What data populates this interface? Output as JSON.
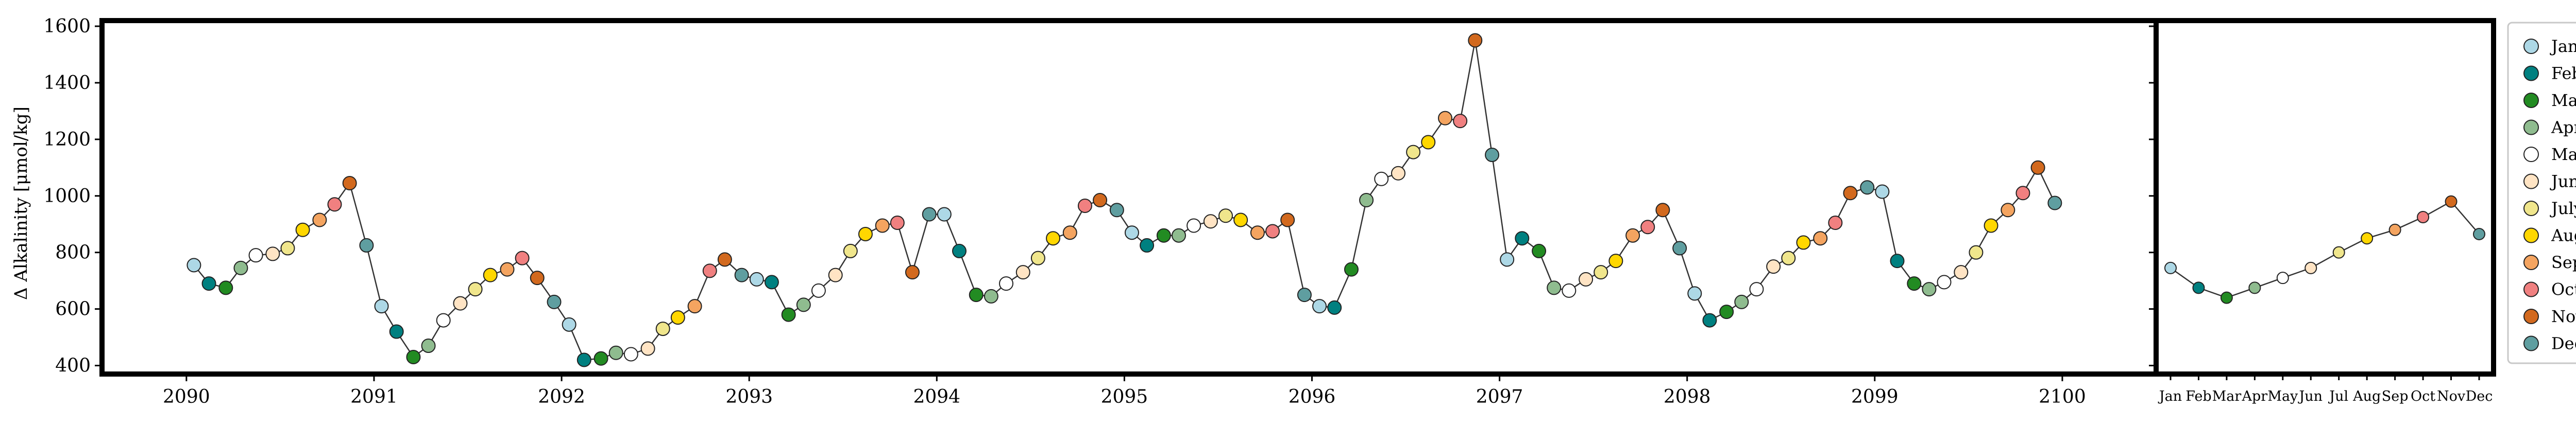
{
  "chart_data": [
    {
      "type": "line",
      "ylabel": "Δ Alkalinity [μmol/kg]",
      "xlabel": "",
      "title": "",
      "xlim": [
        2089.55,
        2100.5
      ],
      "ylim": [
        370,
        1620
      ],
      "y_ticks": [
        400,
        600,
        800,
        1000,
        1200,
        1400,
        1600
      ],
      "x_ticks": [
        "2090",
        "2091",
        "2092",
        "2093",
        "2094",
        "2095",
        "2096",
        "2097",
        "2098",
        "2099",
        "2100"
      ],
      "grid": false,
      "x": [
        2090.04,
        2090.12,
        2090.21,
        2090.29,
        2090.37,
        2090.46,
        2090.54,
        2090.62,
        2090.71,
        2090.79,
        2090.87,
        2090.96,
        2091.04,
        2091.12,
        2091.21,
        2091.29,
        2091.37,
        2091.46,
        2091.54,
        2091.62,
        2091.71,
        2091.79,
        2091.87,
        2091.96,
        2092.04,
        2092.12,
        2092.21,
        2092.29,
        2092.37,
        2092.46,
        2092.54,
        2092.62,
        2092.71,
        2092.79,
        2092.87,
        2092.96,
        2093.04,
        2093.12,
        2093.21,
        2093.29,
        2093.37,
        2093.46,
        2093.54,
        2093.62,
        2093.71,
        2093.79,
        2093.87,
        2093.96,
        2094.04,
        2094.12,
        2094.21,
        2094.29,
        2094.37,
        2094.46,
        2094.54,
        2094.62,
        2094.71,
        2094.79,
        2094.87,
        2094.96,
        2095.04,
        2095.12,
        2095.21,
        2095.29,
        2095.37,
        2095.46,
        2095.54,
        2095.62,
        2095.71,
        2095.79,
        2095.87,
        2095.96,
        2096.04,
        2096.12,
        2096.21,
        2096.29,
        2096.37,
        2096.46,
        2096.54,
        2096.62,
        2096.71,
        2096.79,
        2096.87,
        2096.96,
        2097.04,
        2097.12,
        2097.21,
        2097.29,
        2097.37,
        2097.46,
        2097.54,
        2097.62,
        2097.71,
        2097.79,
        2097.87,
        2097.96,
        2098.04,
        2098.12,
        2098.21,
        2098.29,
        2098.37,
        2098.46,
        2098.54,
        2098.62,
        2098.71,
        2098.79,
        2098.87,
        2098.96,
        2099.04,
        2099.12,
        2099.21,
        2099.29,
        2099.37,
        2099.46,
        2099.54,
        2099.62,
        2099.71,
        2099.79,
        2099.87,
        2099.96
      ],
      "y": [
        755,
        690,
        675,
        745,
        790,
        795,
        815,
        880,
        915,
        970,
        1045,
        825,
        610,
        520,
        430,
        470,
        560,
        620,
        670,
        720,
        740,
        780,
        710,
        625,
        545,
        420,
        425,
        445,
        440,
        460,
        530,
        570,
        610,
        735,
        775,
        720,
        705,
        695,
        580,
        615,
        665,
        720,
        805,
        865,
        895,
        905,
        730,
        935,
        935,
        805,
        650,
        645,
        690,
        730,
        780,
        850,
        870,
        965,
        985,
        950,
        870,
        825,
        860,
        860,
        895,
        910,
        930,
        915,
        870,
        875,
        915,
        650,
        610,
        605,
        740,
        985,
        1060,
        1080,
        1155,
        1190,
        1275,
        1265,
        1550,
        1145,
        775,
        850,
        805,
        675,
        665,
        705,
        730,
        770,
        860,
        890,
        950,
        815,
        655,
        560,
        590,
        625,
        670,
        750,
        780,
        835,
        850,
        905,
        1010,
        1030,
        1015,
        770,
        690,
        670,
        695,
        730,
        800,
        895,
        950,
        1010,
        1100,
        975
      ],
      "month_of_point": [
        0,
        1,
        2,
        3,
        4,
        5,
        6,
        7,
        8,
        9,
        10,
        11
      ]
    },
    {
      "type": "line",
      "title": "",
      "categories": [
        "Jan",
        "Feb",
        "Mar",
        "Apr",
        "May",
        "Jun",
        "Jul",
        "Aug",
        "Sep",
        "Oct",
        "Nov",
        "Dec"
      ],
      "values": [
        745,
        675,
        640,
        675,
        710,
        745,
        800,
        850,
        880,
        925,
        980,
        865
      ],
      "ylim": [
        370,
        1620
      ],
      "grid": false
    }
  ],
  "legend": {
    "placement": "right",
    "entries": [
      {
        "label": "Jan",
        "color": "#add8e6"
      },
      {
        "label": "Feb",
        "color": "#008080"
      },
      {
        "label": "Mar",
        "color": "#228b22"
      },
      {
        "label": "Apr",
        "color": "#8fbc8f"
      },
      {
        "label": "May",
        "color": "#ffffff"
      },
      {
        "label": "June",
        "color": "#ffe4c4"
      },
      {
        "label": "July",
        "color": "#f0e68c"
      },
      {
        "label": "Aug",
        "color": "#ffd700"
      },
      {
        "label": "Sept",
        "color": "#f4a460"
      },
      {
        "label": "Oct",
        "color": "#f08080"
      },
      {
        "label": "Nov",
        "color": "#d2691e"
      },
      {
        "label": "Dec",
        "color": "#5f9ea0"
      }
    ]
  }
}
